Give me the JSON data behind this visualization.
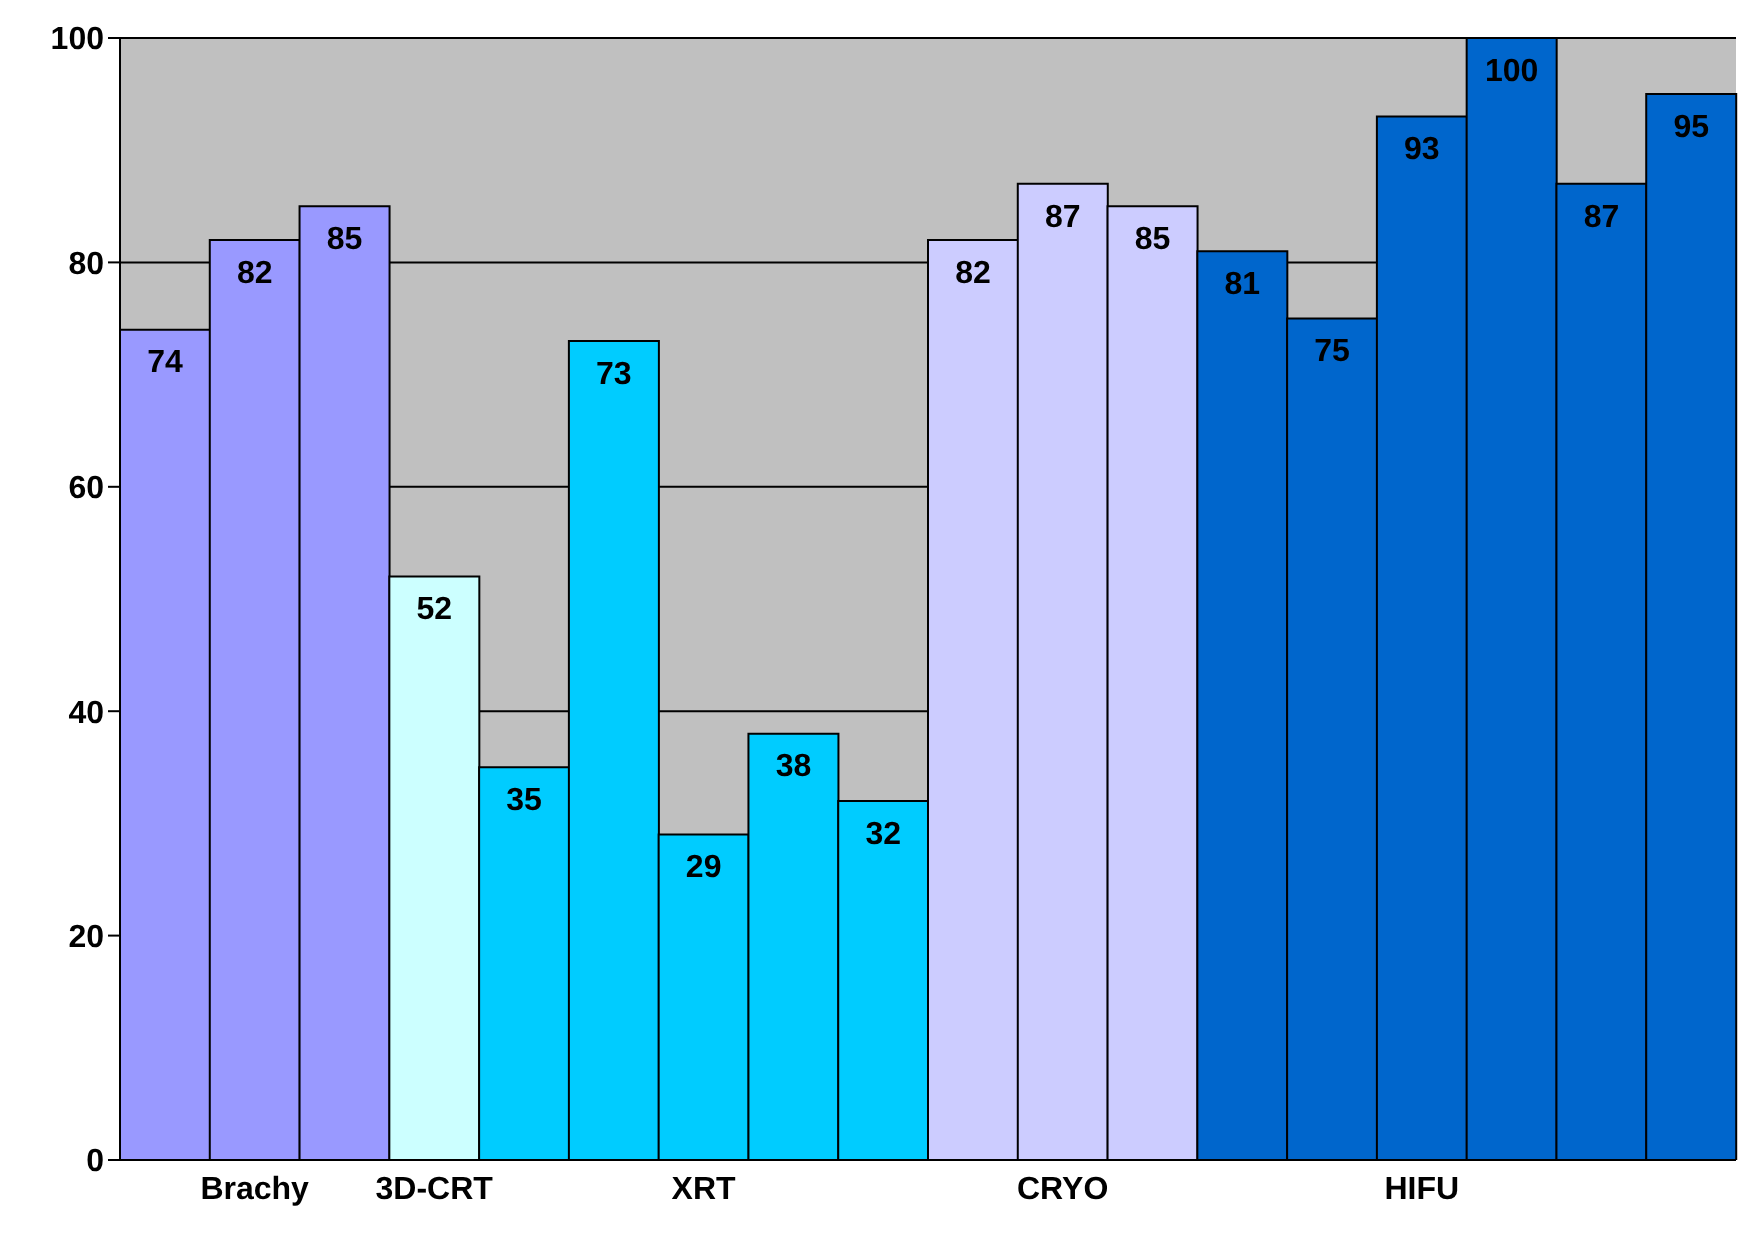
{
  "chart_data": {
    "type": "bar",
    "categories": [
      null,
      "Brachy",
      null,
      "3D-CRT",
      null,
      null,
      "XRT",
      null,
      null,
      null,
      "CRYO",
      null,
      null,
      null,
      "HIFU",
      null,
      null,
      null
    ],
    "values": [
      74,
      82,
      85,
      52,
      35,
      73,
      29,
      38,
      32,
      82,
      87,
      85,
      81,
      75,
      93,
      100,
      87,
      95
    ],
    "colors": [
      "#9999ff",
      "#9999ff",
      "#9999ff",
      "#ccffff",
      "#00ccff",
      "#00ccff",
      "#00ccff",
      "#00ccff",
      "#00ccff",
      "#ccccff",
      "#ccccff",
      "#ccccff",
      "#0066cc",
      "#0066cc",
      "#0066cc",
      "#0066cc",
      "#0066cc",
      "#0066cc"
    ],
    "ylim": [
      0,
      100
    ],
    "yticks": [
      0,
      20,
      40,
      60,
      80,
      100
    ],
    "grid": "y",
    "data_labels": true
  }
}
